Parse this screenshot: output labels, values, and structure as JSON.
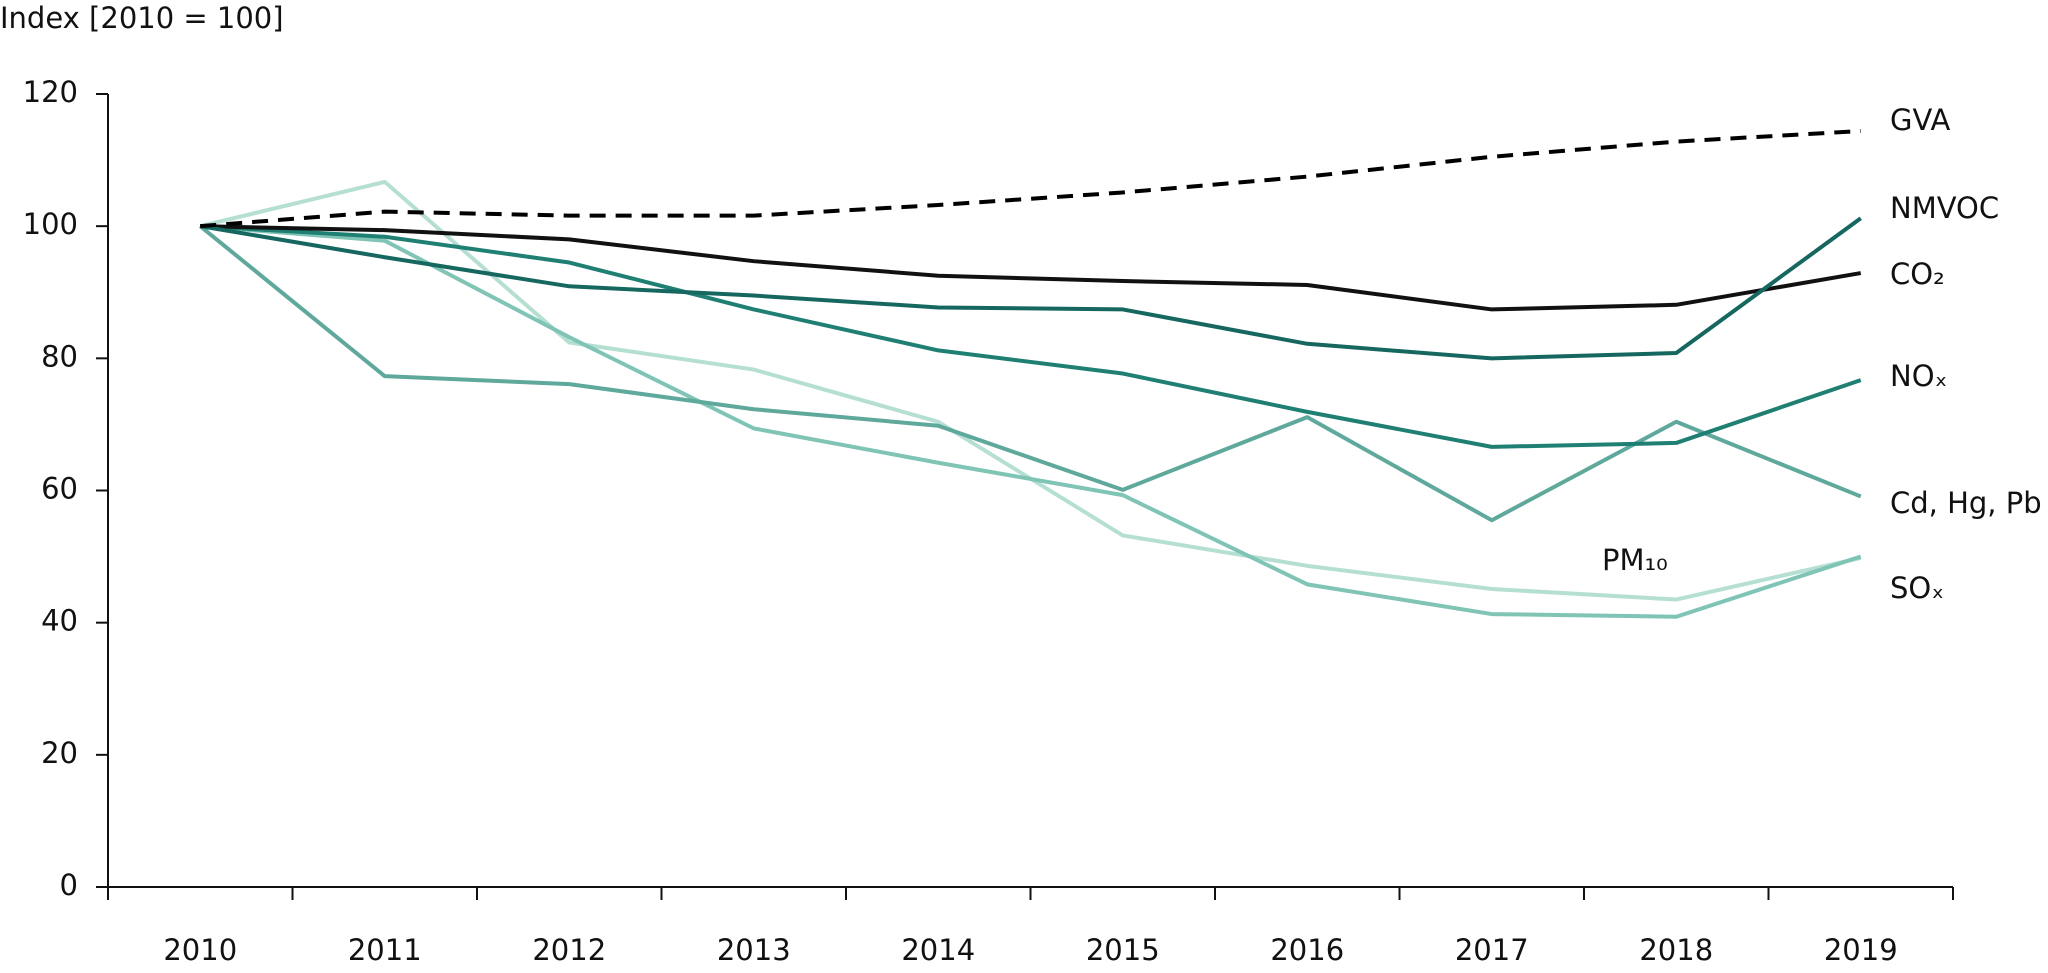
{
  "chart_data": {
    "type": "line",
    "y_axis_label": "Index [2010 = 100]",
    "categories": [
      "2010",
      "2011",
      "2012",
      "2013",
      "2014",
      "2015",
      "2016",
      "2017",
      "2018",
      "2019"
    ],
    "ylim": [
      0,
      120
    ],
    "yticks": [
      0,
      20,
      40,
      60,
      80,
      100,
      120
    ],
    "series": [
      {
        "name": "GVA",
        "color": "#000000",
        "dashed": true,
        "values": [
          100,
          102.2,
          101.6,
          101.6,
          103.2,
          105.1,
          107.5,
          110.5,
          112.8,
          114.4
        ]
      },
      {
        "name": "NMVOC",
        "color": "#16675f",
        "values": [
          100,
          95.3,
          90.9,
          89.5,
          87.7,
          87.4,
          82.2,
          80.0,
          80.8,
          101.2
        ]
      },
      {
        "name": "CO₂",
        "color": "#111111",
        "values": [
          100,
          99.4,
          98.0,
          94.7,
          92.5,
          91.7,
          91.1,
          87.4,
          88.1,
          92.9
        ]
      },
      {
        "name": "NOₓ",
        "color": "#1f7f73",
        "values": [
          100,
          98.4,
          94.5,
          87.4,
          81.2,
          77.7,
          71.9,
          66.6,
          67.2,
          76.7
        ]
      },
      {
        "name": "Cd, Hg, Pb",
        "color": "#5fa89c",
        "values": [
          100,
          77.3,
          76.1,
          72.3,
          69.8,
          60.1,
          71.1,
          55.5,
          70.4,
          59.1
        ]
      },
      {
        "name": "SOₓ",
        "color": "#7fc4b5",
        "values": [
          100,
          97.8,
          83.2,
          69.4,
          64.2,
          59.3,
          45.8,
          41.3,
          40.9,
          50.0
        ]
      },
      {
        "name": "PM₁₀",
        "color": "#b5dfd3",
        "values": [
          100,
          106.7,
          82.4,
          78.3,
          70.4,
          53.2,
          48.6,
          45.1,
          43.5,
          49.8
        ]
      }
    ]
  }
}
